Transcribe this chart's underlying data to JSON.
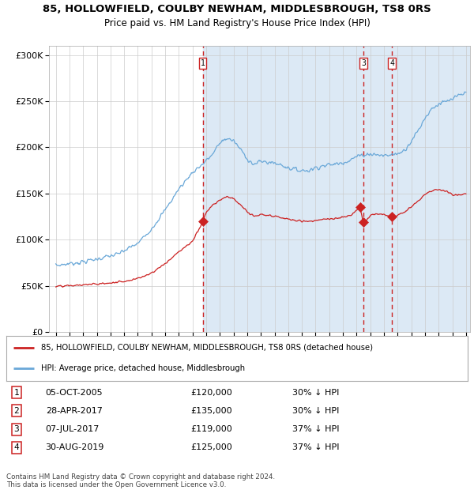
{
  "title1": "85, HOLLOWFIELD, COULBY NEWHAM, MIDDLESBROUGH, TS8 0RS",
  "title2": "Price paid vs. HM Land Registry's House Price Index (HPI)",
  "legend1": "85, HOLLOWFIELD, COULBY NEWHAM, MIDDLESBROUGH, TS8 0RS (detached house)",
  "legend2": "HPI: Average price, detached house, Middlesbrough",
  "footnote1": "Contains HM Land Registry data © Crown copyright and database right 2024.",
  "footnote2": "This data is licensed under the Open Government Licence v3.0.",
  "transactions": [
    {
      "label": "1",
      "date": "2005-10-05",
      "price": 120000,
      "note": "30% ↓ HPI",
      "date_str": "05-OCT-2005"
    },
    {
      "label": "2",
      "date": "2017-04-28",
      "price": 135000,
      "note": "30% ↓ HPI",
      "date_str": "28-APR-2017"
    },
    {
      "label": "3",
      "date": "2017-07-07",
      "price": 119000,
      "note": "37% ↓ HPI",
      "date_str": "07-JUL-2017"
    },
    {
      "label": "4",
      "date": "2019-08-30",
      "price": 125000,
      "note": "37% ↓ HPI",
      "date_str": "30-AUG-2019"
    }
  ],
  "vline_indices": [
    0,
    2,
    3
  ],
  "bg_color": "#dce9f5",
  "hpi_color": "#6aa8d8",
  "price_color": "#cc2222",
  "vline_color": "#cc2222",
  "ylim": [
    0,
    310000
  ],
  "yticks": [
    0,
    50000,
    100000,
    150000,
    200000,
    250000,
    300000
  ],
  "xlim_start": 1994.5,
  "xlim_end": 2025.3,
  "hpi_anchors": [
    [
      1995.0,
      72000
    ],
    [
      1996.0,
      74000
    ],
    [
      1997.0,
      76000
    ],
    [
      1998.0,
      79000
    ],
    [
      1999.5,
      84000
    ],
    [
      2001.0,
      96000
    ],
    [
      2002.0,
      112000
    ],
    [
      2003.0,
      132000
    ],
    [
      2004.0,
      155000
    ],
    [
      2005.0,
      173000
    ],
    [
      2005.75,
      182000
    ],
    [
      2006.5,
      193000
    ],
    [
      2007.0,
      205000
    ],
    [
      2007.5,
      210000
    ],
    [
      2008.0,
      207000
    ],
    [
      2008.5,
      198000
    ],
    [
      2009.0,
      188000
    ],
    [
      2009.5,
      181000
    ],
    [
      2010.0,
      185000
    ],
    [
      2010.5,
      184000
    ],
    [
      2011.0,
      183000
    ],
    [
      2011.5,
      181000
    ],
    [
      2012.0,
      178000
    ],
    [
      2012.5,
      176000
    ],
    [
      2013.0,
      175000
    ],
    [
      2013.5,
      175000
    ],
    [
      2014.0,
      178000
    ],
    [
      2014.5,
      180000
    ],
    [
      2015.0,
      181000
    ],
    [
      2015.5,
      182000
    ],
    [
      2016.0,
      184000
    ],
    [
      2016.5,
      186000
    ],
    [
      2017.0,
      190000
    ],
    [
      2017.5,
      192000
    ],
    [
      2018.0,
      193000
    ],
    [
      2018.5,
      192000
    ],
    [
      2019.0,
      191000
    ],
    [
      2019.5,
      192000
    ],
    [
      2020.0,
      193000
    ],
    [
      2020.5,
      197000
    ],
    [
      2021.0,
      207000
    ],
    [
      2021.5,
      218000
    ],
    [
      2022.0,
      232000
    ],
    [
      2022.5,
      242000
    ],
    [
      2023.0,
      247000
    ],
    [
      2023.5,
      249000
    ],
    [
      2024.0,
      252000
    ],
    [
      2024.5,
      256000
    ],
    [
      2025.0,
      259000
    ]
  ],
  "prop_anchors": [
    [
      1995.0,
      49000
    ],
    [
      1996.0,
      50000
    ],
    [
      1997.0,
      51000
    ],
    [
      1998.0,
      52000
    ],
    [
      1999.0,
      53000
    ],
    [
      2000.0,
      55000
    ],
    [
      2001.0,
      58000
    ],
    [
      2002.0,
      64000
    ],
    [
      2003.0,
      74000
    ],
    [
      2004.0,
      87000
    ],
    [
      2005.0,
      98000
    ],
    [
      2005.75,
      120000
    ],
    [
      2006.0,
      130000
    ],
    [
      2006.5,
      138000
    ],
    [
      2007.0,
      143000
    ],
    [
      2007.5,
      147000
    ],
    [
      2008.0,
      144000
    ],
    [
      2008.5,
      138000
    ],
    [
      2009.0,
      130000
    ],
    [
      2009.5,
      125000
    ],
    [
      2010.0,
      127000
    ],
    [
      2010.5,
      126000
    ],
    [
      2011.0,
      125000
    ],
    [
      2011.5,
      124000
    ],
    [
      2012.0,
      122000
    ],
    [
      2012.5,
      121000
    ],
    [
      2013.0,
      120000
    ],
    [
      2013.5,
      120000
    ],
    [
      2014.0,
      121000
    ],
    [
      2014.5,
      122000
    ],
    [
      2015.0,
      122000
    ],
    [
      2015.5,
      123000
    ],
    [
      2016.0,
      124000
    ],
    [
      2016.5,
      126000
    ],
    [
      2017.25,
      135000
    ],
    [
      2017.5,
      119000
    ],
    [
      2017.75,
      122000
    ],
    [
      2018.0,
      126000
    ],
    [
      2018.5,
      128000
    ],
    [
      2019.0,
      127000
    ],
    [
      2019.5,
      125000
    ],
    [
      2019.75,
      125000
    ],
    [
      2020.0,
      127000
    ],
    [
      2020.5,
      130000
    ],
    [
      2021.0,
      136000
    ],
    [
      2021.5,
      142000
    ],
    [
      2022.0,
      149000
    ],
    [
      2022.5,
      153000
    ],
    [
      2023.0,
      155000
    ],
    [
      2023.5,
      152000
    ],
    [
      2024.0,
      149000
    ],
    [
      2024.5,
      148000
    ],
    [
      2025.0,
      150000
    ]
  ]
}
